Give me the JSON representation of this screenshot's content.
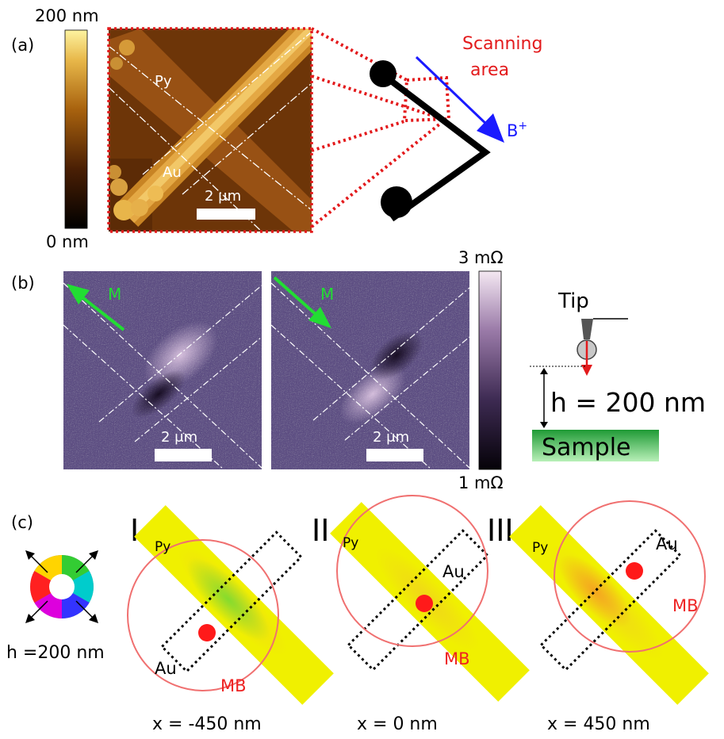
{
  "panel_a": {
    "label": "(a)",
    "height_scale": {
      "max_label": "200 nm",
      "min_label": "0 nm"
    },
    "image_labels": {
      "py": "Py",
      "au": "Au"
    },
    "scalebar": "2 μm",
    "annotation": "Scanning area",
    "annotation_lines": [
      "Scanning",
      "area"
    ],
    "field_label": "B",
    "field_superscript": "+"
  },
  "panel_b": {
    "label": "(b)",
    "magnetization_label": "M",
    "scalebar": "2 μm",
    "resistance_scale": {
      "max_label": "3 mΩ",
      "min_label": "1 mΩ"
    },
    "tip_label": "Tip",
    "height_text": "h = 200 nm",
    "sample_label": "Sample"
  },
  "panel_c": {
    "label": "(c)",
    "color_wheel_label": "h =200 nm",
    "subpanels": [
      {
        "numeral": "I",
        "py": "Py",
        "au": "Au",
        "mb": "MB",
        "position": "x = -450 nm"
      },
      {
        "numeral": "II",
        "py": "Py",
        "au": "Au",
        "mb": "MB",
        "position": "x = 0 nm"
      },
      {
        "numeral": "III",
        "py": "Py",
        "au": "Au",
        "mb": "MB",
        "position": "x = 450 nm"
      }
    ]
  },
  "colors": {
    "annotation_red": "#e31a1c",
    "field_blue": "#1a1aff",
    "magnetization_green": "#22dd33",
    "mb_circle": "#f07070",
    "sample_green": "#22b040"
  }
}
